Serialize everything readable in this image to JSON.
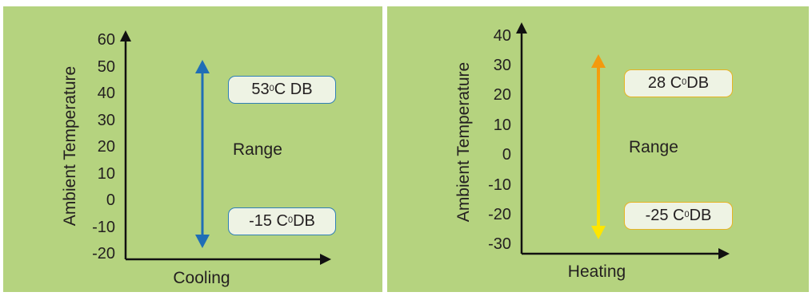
{
  "colors": {
    "panel_bg": "#b5d37f",
    "cooling_arrow": "#1f6eb6",
    "heating_arrow_top": "#f39a0e",
    "heating_arrow_bottom": "#ffe600"
  },
  "cooling": {
    "ylabel": "Ambient Temperature",
    "xlabel": "Cooling",
    "ticks": [
      "60",
      "50",
      "40",
      "30",
      "20",
      "10",
      "0",
      "-10",
      "-20"
    ],
    "range_label": "Range",
    "max_tag": {
      "pre": "53",
      "sup": "0",
      "post": "C DB"
    },
    "min_tag": {
      "pre": "-15 C",
      "sup": "0",
      "post": "DB"
    }
  },
  "heating": {
    "ylabel": "Ambient Temperature",
    "xlabel": "Heating",
    "ticks": [
      "40",
      "30",
      "20",
      "10",
      "0",
      "-10",
      "-20",
      "-30"
    ],
    "range_label": "Range",
    "max_tag": {
      "pre": "28 C",
      "sup": "0",
      "post": "DB"
    },
    "min_tag": {
      "pre": "-25 C",
      "sup": "0",
      "post": "DB"
    }
  }
}
